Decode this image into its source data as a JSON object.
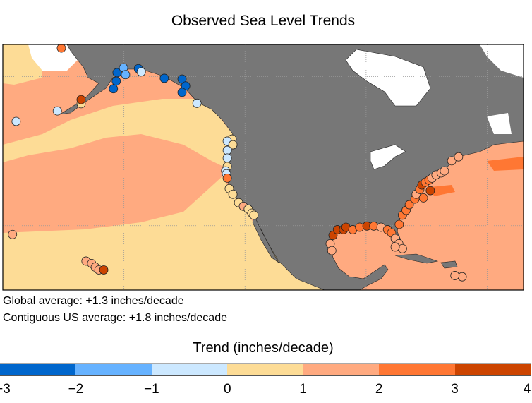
{
  "title": "Observed Sea Level Trends",
  "notes": {
    "global": "Global average: +1.3 inches/decade",
    "us": "Contiguous US average: +1.8 inches/decade"
  },
  "legend": {
    "title": "Trend (inches/decade)",
    "ticks": [
      "−3",
      "−2",
      "−1",
      "0",
      "1",
      "2",
      "3",
      "4"
    ],
    "bins": [
      {
        "min": -3,
        "max": -2,
        "color": "#0066cc"
      },
      {
        "min": -2,
        "max": -1,
        "color": "#66b2ff"
      },
      {
        "min": -1,
        "max": 0,
        "color": "#cce8ff"
      },
      {
        "min": 0,
        "max": 1,
        "color": "#fddc96"
      },
      {
        "min": 1,
        "max": 2,
        "color": "#ffaa80"
      },
      {
        "min": 2,
        "max": 3,
        "color": "#ff7733"
      },
      {
        "min": 3,
        "max": 4,
        "color": "#cc4400"
      }
    ]
  },
  "colors": {
    "land": "#777777",
    "ice": "#ffffff",
    "ocean_low": "#fddc96",
    "ocean_mid": "#ffaa80",
    "ocean_high": "#ff7733"
  },
  "chart_data": {
    "type": "map",
    "title": "Observed Sea Level Trends",
    "units": "inches/decade",
    "extent": {
      "lon": [
        -180,
        -51
      ],
      "lat": [
        14,
        75
      ]
    },
    "stations": [
      {
        "lon": -165.5,
        "lat": 74.1,
        "trend": 2.5
      },
      {
        "lon": -151.7,
        "lat": 68.0,
        "trend": -2.5
      },
      {
        "lon": -150.1,
        "lat": 69.2,
        "trend": -1.5
      },
      {
        "lon": -149.6,
        "lat": 67.5,
        "trend": -1.5
      },
      {
        "lon": -151.9,
        "lat": 65.9,
        "trend": -2.5
      },
      {
        "lon": -152.6,
        "lat": 64.0,
        "trend": -2.5
      },
      {
        "lon": -146.4,
        "lat": 69.0,
        "trend": -2.5
      },
      {
        "lon": -145.7,
        "lat": 68.2,
        "trend": -0.5
      },
      {
        "lon": -140.0,
        "lat": 66.6,
        "trend": -2.5
      },
      {
        "lon": -135.6,
        "lat": 66.4,
        "trend": -2.5
      },
      {
        "lon": -134.7,
        "lat": 64.7,
        "trend": -2.5
      },
      {
        "lon": -135.6,
        "lat": 63.1,
        "trend": -2.5
      },
      {
        "lon": -131.9,
        "lat": 60.4,
        "trend": -0.5
      },
      {
        "lon": -160.6,
        "lat": 60.3,
        "trend": 0.5
      },
      {
        "lon": -160.6,
        "lat": 61.3,
        "trend": 3.5
      },
      {
        "lon": -166.5,
        "lat": 58.5,
        "trend": -0.5
      },
      {
        "lon": -176.7,
        "lat": 55.9,
        "trend": -0.5
      },
      {
        "lon": -123.2,
        "lat": 51.5,
        "trend": 0.5
      },
      {
        "lon": -124.4,
        "lat": 51.0,
        "trend": -0.5
      },
      {
        "lon": -123.0,
        "lat": 50.1,
        "trend": 0.5
      },
      {
        "lon": -124.4,
        "lat": 48.7,
        "trend": -0.5
      },
      {
        "lon": -124.4,
        "lat": 46.8,
        "trend": -0.5
      },
      {
        "lon": -124.4,
        "lat": 44.7,
        "trend": 0.5
      },
      {
        "lon": -124.8,
        "lat": 43.6,
        "trend": -0.5
      },
      {
        "lon": -124.6,
        "lat": 42.9,
        "trend": -0.5
      },
      {
        "lon": -124.4,
        "lat": 41.8,
        "trend": 2.5
      },
      {
        "lon": -123.9,
        "lat": 39.2,
        "trend": 0.5
      },
      {
        "lon": -123.0,
        "lat": 37.8,
        "trend": 0.5
      },
      {
        "lon": -121.6,
        "lat": 35.7,
        "trend": 0.5
      },
      {
        "lon": -120.4,
        "lat": 34.8,
        "trend": 1.5
      },
      {
        "lon": -119.2,
        "lat": 34.1,
        "trend": 0.5
      },
      {
        "lon": -118.3,
        "lat": 33.1,
        "trend": 0.5
      },
      {
        "lon": -117.8,
        "lat": 32.6,
        "trend": 0.5
      },
      {
        "lon": -177.6,
        "lat": 27.8,
        "trend": 1.5
      },
      {
        "lon": -159.4,
        "lat": 21.2,
        "trend": 1.5
      },
      {
        "lon": -158.0,
        "lat": 20.6,
        "trend": 1.5
      },
      {
        "lon": -157.1,
        "lat": 19.7,
        "trend": 1.5
      },
      {
        "lon": -156.2,
        "lat": 19.0,
        "trend": 1.5
      },
      {
        "lon": -155.0,
        "lat": 19.0,
        "trend": 3.5
      },
      {
        "lon": -98.2,
        "lat": 27.6,
        "trend": 3.5
      },
      {
        "lon": -97.1,
        "lat": 29.0,
        "trend": 3.5
      },
      {
        "lon": -95.6,
        "lat": 29.0,
        "trend": 3.5
      },
      {
        "lon": -95.0,
        "lat": 29.6,
        "trend": 3.5
      },
      {
        "lon": -93.3,
        "lat": 29.0,
        "trend": 2.5
      },
      {
        "lon": -91.6,
        "lat": 29.6,
        "trend": 2.5
      },
      {
        "lon": -89.8,
        "lat": 29.9,
        "trend": 3.5
      },
      {
        "lon": -88.1,
        "lat": 29.9,
        "trend": 2.5
      },
      {
        "lon": -86.3,
        "lat": 29.6,
        "trend": 1.5
      },
      {
        "lon": -84.7,
        "lat": 29.0,
        "trend": 2.5
      },
      {
        "lon": -83.7,
        "lat": 28.2,
        "trend": 2.5
      },
      {
        "lon": -82.8,
        "lat": 26.8,
        "trend": 1.5
      },
      {
        "lon": -81.9,
        "lat": 25.5,
        "trend": 1.5
      },
      {
        "lon": -81.0,
        "lat": 24.3,
        "trend": 1.5
      },
      {
        "lon": -98.9,
        "lat": 25.5,
        "trend": 1.5
      },
      {
        "lon": -98.5,
        "lat": 23.8,
        "trend": 1.5
      },
      {
        "lon": -82.8,
        "lat": 24.7,
        "trend": 1.5
      },
      {
        "lon": -81.8,
        "lat": 30.3,
        "trend": 2.5
      },
      {
        "lon": -81.0,
        "lat": 32.6,
        "trend": 2.5
      },
      {
        "lon": -80.1,
        "lat": 33.8,
        "trend": 2.5
      },
      {
        "lon": -79.3,
        "lat": 35.2,
        "trend": 2.5
      },
      {
        "lon": -77.9,
        "lat": 36.6,
        "trend": 2.5
      },
      {
        "lon": -77.6,
        "lat": 37.8,
        "trend": 1.5
      },
      {
        "lon": -76.7,
        "lat": 39.0,
        "trend": 2.5
      },
      {
        "lon": -76.2,
        "lat": 40.1,
        "trend": 3.5
      },
      {
        "lon": -75.3,
        "lat": 40.8,
        "trend": 2.5
      },
      {
        "lon": -74.4,
        "lat": 41.3,
        "trend": 2.5
      },
      {
        "lon": -73.7,
        "lat": 41.8,
        "trend": 1.5
      },
      {
        "lon": -72.7,
        "lat": 42.6,
        "trend": 1.5
      },
      {
        "lon": -71.4,
        "lat": 43.1,
        "trend": 1.5
      },
      {
        "lon": -70.6,
        "lat": 43.6,
        "trend": 1.5
      },
      {
        "lon": -68.8,
        "lat": 46.1,
        "trend": 1.5
      },
      {
        "lon": -67.1,
        "lat": 47.1,
        "trend": 1.5
      },
      {
        "lon": -75.8,
        "lat": 36.9,
        "trend": 2.5
      },
      {
        "lon": -74.1,
        "lat": 38.7,
        "trend": 3.5
      },
      {
        "lon": -66.2,
        "lat": 17.3,
        "trend": 1.5
      },
      {
        "lon": -68.0,
        "lat": 17.6,
        "trend": 1.5
      }
    ]
  }
}
